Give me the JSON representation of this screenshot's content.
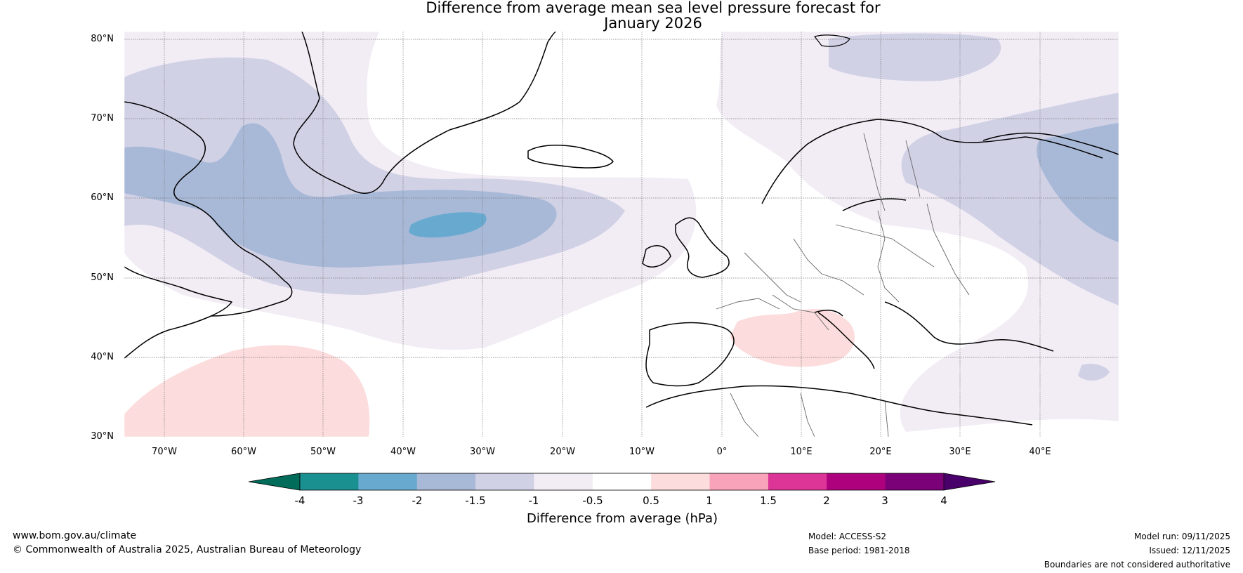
{
  "title": {
    "line1": "Difference from average mean sea level pressure forecast for",
    "line2": "January 2026"
  },
  "map": {
    "latitude_labels": [
      "80°N",
      "70°N",
      "60°N",
      "50°N",
      "40°N",
      "30°N"
    ],
    "longitude_labels": [
      "70°W",
      "60°W",
      "50°W",
      "40°W",
      "30°W",
      "20°W",
      "10°W",
      "0°",
      "10°E",
      "20°E",
      "30°E",
      "40°E"
    ],
    "extent": {
      "lon_min": -75,
      "lon_max": 50,
      "lat_min": 30,
      "lat_max": 81
    }
  },
  "colorbar": {
    "ticks": [
      "-4",
      "-3",
      "-2",
      "-1.5",
      "-1",
      "-0.5",
      "0.5",
      "1",
      "1.5",
      "2",
      "3",
      "4"
    ],
    "colors": [
      "#1a9091",
      "#67a9cf",
      "#a8b9d8",
      "#d1d1e6",
      "#f2ecf5",
      "#ffffff",
      "#fcdcdc",
      "#f9a3bb",
      "#dd3497",
      "#ae017e",
      "#7a0177"
    ],
    "under_color": "#016c59",
    "over_color": "#49006a",
    "label": "Difference from average (hPa)"
  },
  "footer": {
    "website": "www.bom.gov.au/climate",
    "copyright": "© Commonwealth of Australia 2025, Australian Bureau of Meteorology",
    "model": "Model: ACCESS-S2",
    "base_period": "Base period: 1981-2018",
    "model_run": "Model run: 09/11/2025",
    "issued": "Issued: 12/11/2025",
    "disclaimer": "Boundaries are not considered authoritative"
  }
}
